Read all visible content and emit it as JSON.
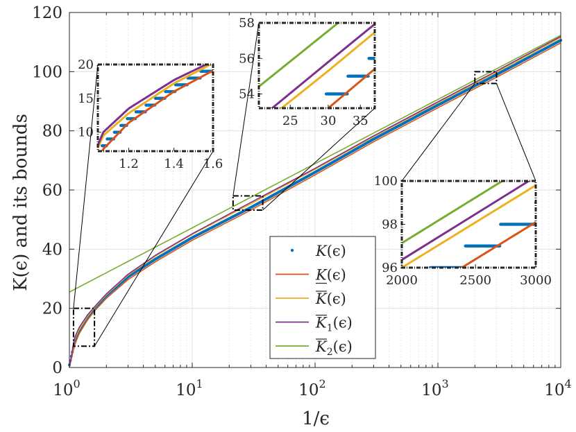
{
  "chart_data": {
    "type": "line",
    "title": "",
    "xlabel": "1/ϵ",
    "ylabel": "K(ϵ) and its bounds",
    "xscale": "log",
    "xlim": [
      1,
      10000
    ],
    "ylim": [
      0,
      120
    ],
    "grid": true,
    "legend_position": "lower-center-right",
    "x_ticks": [
      {
        "value": 1,
        "base": "10",
        "exp": "0"
      },
      {
        "value": 10,
        "base": "10",
        "exp": "1"
      },
      {
        "value": 100,
        "base": "10",
        "exp": "2"
      },
      {
        "value": 1000,
        "base": "10",
        "exp": "3"
      },
      {
        "value": 10000,
        "base": "10",
        "exp": "4"
      }
    ],
    "y_ticks": [
      "0",
      "20",
      "40",
      "60",
      "80",
      "100",
      "120"
    ],
    "colors": {
      "K": "#0072BD",
      "K_lower": "#D95319",
      "K_upper": "#EDB120",
      "K_upper_1": "#7E2F8E",
      "K_upper_2": "#77AC30"
    },
    "series": [
      {
        "key": "K",
        "name": "K(ϵ)",
        "label_main": "K",
        "label_sub": "",
        "label_arg": "(ϵ)",
        "overline": false,
        "underline": false,
        "style": "dots",
        "formula": "ceil(log(eps)/log(1-0.0787))",
        "note": "step-valued sequence plotted as points"
      },
      {
        "key": "K_lower",
        "name": "K̲(ϵ)",
        "label_main": "K",
        "label_sub": "",
        "label_arg": "(ϵ)",
        "overline": false,
        "underline": true,
        "style": "line",
        "x": [
          1,
          1.1,
          1.2,
          1.4,
          1.6,
          2,
          3,
          5,
          10,
          30,
          100,
          300,
          1000,
          3000,
          10000
        ],
        "y": [
          0,
          7.5,
          11.4,
          16.0,
          19.1,
          23.4,
          29.7,
          35.7,
          43.0,
          53.2,
          65.1,
          76.3,
          87.8,
          98.1,
          109.7
        ]
      },
      {
        "key": "K_upper",
        "name": "K̄(ϵ)",
        "label_main": "K",
        "label_sub": "",
        "label_arg": "(ϵ)",
        "overline": true,
        "underline": false,
        "style": "line",
        "x": [
          1,
          1.1,
          1.2,
          1.4,
          1.6,
          2,
          3,
          5,
          10,
          30,
          100,
          300,
          1000,
          3000,
          10000
        ],
        "y": [
          0,
          9.5,
          12.8,
          17.2,
          20.2,
          24.6,
          31.2,
          37.6,
          45.0,
          55.3,
          67.0,
          78.0,
          89.5,
          99.8,
          111.5
        ]
      },
      {
        "key": "K_upper_1",
        "name": "K̄₁(ϵ)",
        "label_main": "K",
        "label_sub": "1",
        "label_arg": "(ϵ)",
        "overline": true,
        "underline": false,
        "style": "line",
        "x": [
          1,
          1.1,
          1.2,
          1.4,
          1.6,
          2,
          3,
          5,
          10,
          30,
          100,
          300,
          1000,
          3000,
          10000
        ],
        "y": [
          0,
          10.0,
          13.5,
          17.7,
          20.5,
          24.9,
          31.5,
          37.9,
          45.2,
          55.8,
          67.3,
          78.3,
          89.8,
          100.2,
          111.9
        ]
      },
      {
        "key": "K_upper_2",
        "name": "K̄₂(ϵ)",
        "label_main": "K",
        "label_sub": "2",
        "label_arg": "(ϵ)",
        "overline": true,
        "underline": false,
        "style": "line",
        "x": [
          1,
          10000
        ],
        "y": [
          25.5,
          112.3
        ]
      }
    ],
    "insets": [
      {
        "name": "inset-1",
        "xlim": [
          1.08,
          1.6
        ],
        "ylim": [
          7.2,
          20
        ],
        "xscale": "log",
        "x_ticks": [
          "1.2",
          "1.4",
          "1.6"
        ],
        "x_tick_values": [
          1.2,
          1.4,
          1.6
        ],
        "y_ticks": [
          "10",
          "15",
          "20"
        ],
        "y_tick_values": [
          10,
          15,
          20
        ]
      },
      {
        "name": "inset-2",
        "xlim": [
          21.5,
          37.5
        ],
        "ylim": [
          53.2,
          58
        ],
        "xscale": "log",
        "x_ticks": [
          "25",
          "30",
          "35"
        ],
        "x_tick_values": [
          25,
          30,
          35
        ],
        "y_ticks": [
          "54",
          "56",
          "58"
        ],
        "y_tick_values": [
          54,
          56,
          58
        ]
      },
      {
        "name": "inset-3",
        "xlim": [
          2000,
          3000
        ],
        "ylim": [
          96,
          100
        ],
        "xscale": "log",
        "x_ticks": [
          "2000",
          "2500",
          "3000"
        ],
        "x_tick_values": [
          2000,
          2500,
          3000
        ],
        "y_ticks": [
          "96",
          "98",
          "100"
        ],
        "y_tick_values": [
          96,
          98,
          100
        ]
      }
    ]
  }
}
